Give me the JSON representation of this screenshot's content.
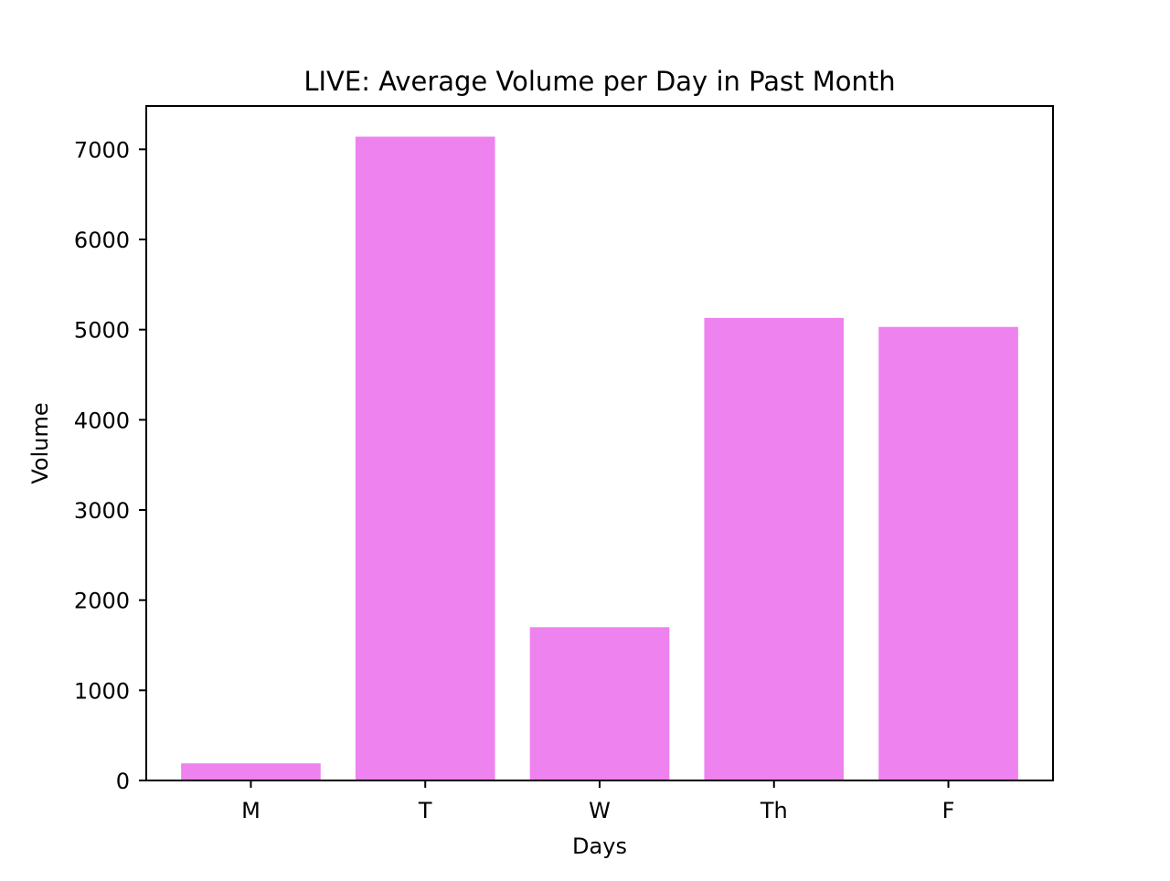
{
  "chart_data": {
    "type": "bar",
    "title": "LIVE: Average Volume per Day in Past Month",
    "xlabel": "Days",
    "ylabel": "Volume",
    "categories": [
      "M",
      "T",
      "W",
      "Th",
      "F"
    ],
    "values": [
      190,
      7140,
      1700,
      5130,
      5030
    ],
    "ylim": [
      0,
      7480
    ],
    "yticks": [
      0,
      1000,
      2000,
      3000,
      4000,
      5000,
      6000,
      7000
    ],
    "bar_color": "#ee82ee",
    "grid": false,
    "legend": "none"
  }
}
